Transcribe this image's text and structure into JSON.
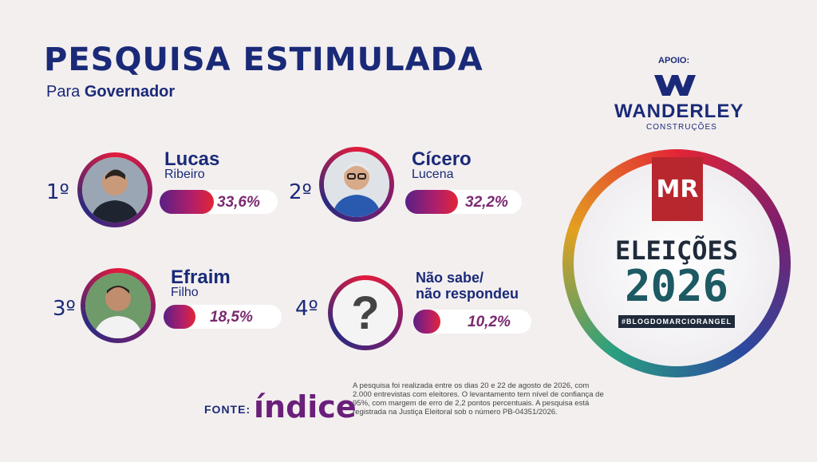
{
  "header": {
    "title": "PESQUISA ESTIMULADA",
    "subtitle_prefix": "Para",
    "subtitle_bold": "Governador"
  },
  "candidates": [
    {
      "position": "1º",
      "first": "Lucas",
      "last": "Ribeiro",
      "percent_label": "33,6%",
      "percent": 33.6
    },
    {
      "position": "2º",
      "first": "Cícero",
      "last": "Lucena",
      "percent_label": "32,2%",
      "percent": 32.2
    },
    {
      "position": "3º",
      "first": "Efraim",
      "last": "Filho",
      "percent_label": "18,5%",
      "percent": 18.5
    },
    {
      "position": "4º",
      "first": "Não sabe/",
      "last": "não respondeu",
      "percent_label": "10,2%",
      "percent": 10.2
    }
  ],
  "support": {
    "label": "APOIO:",
    "company": "WANDERLEY",
    "company_sub": "CONSTRUÇÕES"
  },
  "badge": {
    "logo": "MR",
    "title": "ELEIÇÕES",
    "year": "2026",
    "hashtag": "#BLOGDOMARCIORANGEL"
  },
  "source": {
    "label": "FONTE:",
    "logo_text": "índice",
    "note": "A pesquisa foi realizada entre os dias 20 e 22 de agosto de 2026, com 2.000 entrevistas com eleitores. O levantamento tem nível de confiança de 95%, com margem de erro de 2,2 pontos percentuais. A pesquisa está registrada na Justiça Eleitoral sob o número PB-04351/2026."
  },
  "colors": {
    "navy": "#1a2a78",
    "bar_start": "#5a1f86",
    "bar_end": "#e32536"
  }
}
